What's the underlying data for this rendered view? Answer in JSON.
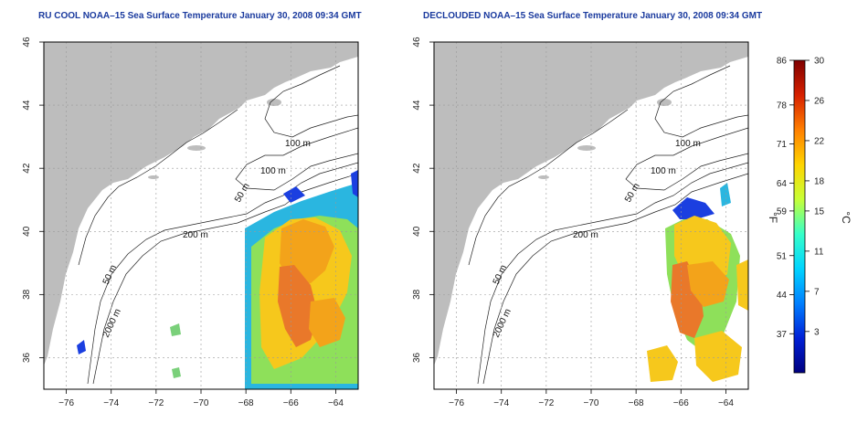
{
  "panels": [
    {
      "id": "left",
      "title": "RU COOL NOAA–15 Sea Surface Temperature January 30, 2008 09:34 GMT",
      "contour_labels": [
        "100 m",
        "100 m",
        "50 m",
        "200 m",
        "50 m",
        "2000 m"
      ]
    },
    {
      "id": "right",
      "title": "DECLOUDED NOAA–15 Sea Surface Temperature January 30, 2008 09:34 GMT",
      "contour_labels": [
        "100 m",
        "100 m",
        "50 m",
        "200 m",
        "50 m",
        "2000 m"
      ]
    }
  ],
  "axes": {
    "x_ticks": [
      "−76",
      "−74",
      "−72",
      "−70",
      "−68",
      "−66",
      "−64"
    ],
    "y_ticks": [
      "36",
      "38",
      "40",
      "42",
      "44",
      "46"
    ],
    "x_range": [
      -77,
      -63
    ],
    "y_range": [
      35,
      46
    ],
    "grid": "dotted"
  },
  "colorbar": {
    "fahrenheit_label": "°F",
    "celsius_label": "°C",
    "fahrenheit_ticks": [
      "86",
      "78",
      "71",
      "64",
      "59",
      "51",
      "44",
      "37"
    ],
    "celsius_ticks": [
      "30",
      "26",
      "22",
      "18",
      "15",
      "11",
      "7",
      "3"
    ],
    "colors": [
      "#7f0000",
      "#d62000",
      "#ff7f00",
      "#ffd400",
      "#c8ff36",
      "#36ffc8",
      "#00d4ff",
      "#007fff",
      "#0020d6",
      "#00007f"
    ]
  },
  "colors": {
    "land": "#bdbdbd",
    "ocean": "#ffffff",
    "title": "#1a3a9e"
  }
}
